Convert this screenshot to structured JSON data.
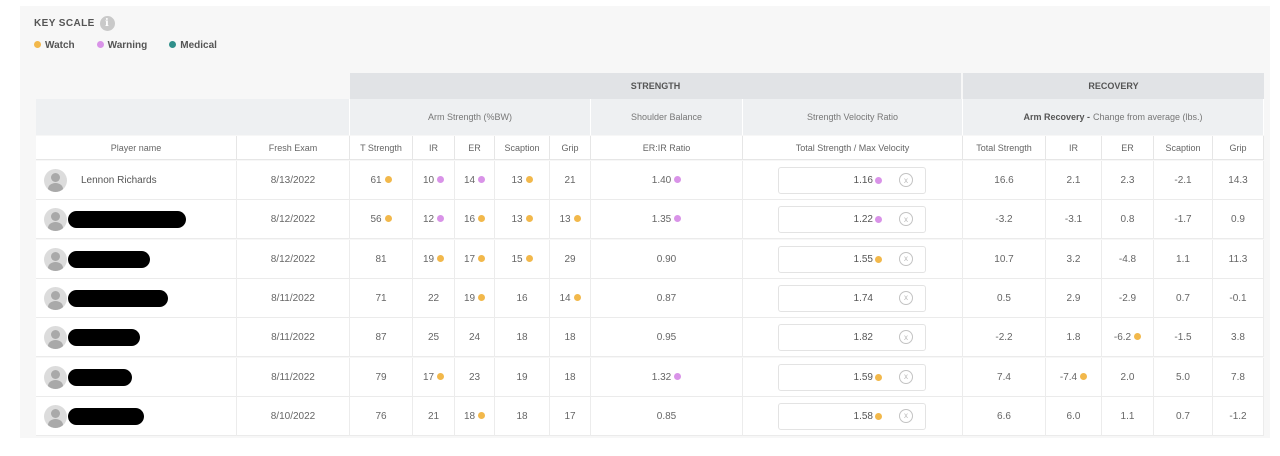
{
  "key_scale": {
    "title": "KEY SCALE",
    "info_icon": "i",
    "legend": [
      {
        "label": "Watch",
        "color": "#f2b84b"
      },
      {
        "label": "Warning",
        "color": "#d993e8"
      },
      {
        "label": "Medical",
        "color": "#2f8f8a"
      }
    ]
  },
  "groups": {
    "strength": "STRENGTH",
    "recovery": "RECOVERY"
  },
  "subgroups": {
    "arm_strength": "Arm Strength (%BW)",
    "shoulder_balance": "Shoulder Balance",
    "svr": "Strength Velocity Ratio",
    "arm_recovery_bold": "Arm Recovery -",
    "arm_recovery_rest": "Change from average (lbs.)"
  },
  "columns": [
    "Player name",
    "Fresh Exam",
    "T Strength",
    "IR",
    "ER",
    "Scaption",
    "Grip",
    "ER:IR Ratio",
    "Total Strength / Max Velocity",
    "Total Strength",
    "IR",
    "ER",
    "Scaption",
    "Grip"
  ],
  "clear_icon": "x",
  "rows": [
    {
      "name": "Lennon Richards",
      "redacted": false,
      "date": "8/13/2022",
      "t": "61",
      "t_flag": "watch",
      "ir": "10",
      "ir_flag": "warning",
      "er": "14",
      "er_flag": "warning",
      "sc": "13",
      "sc_flag": "watch",
      "grip": "21",
      "grip_flag": "",
      "ratio": "1.40",
      "ratio_flag": "warning",
      "svr": "1.16",
      "svr_flag": "warning",
      "r_total": "16.6",
      "r_total_flag": "",
      "r_ir": "2.1",
      "r_ir_flag": "",
      "r_er": "2.3",
      "r_er_flag": "",
      "r_sc": "-2.1",
      "r_grip": "14.3"
    },
    {
      "name": "",
      "redacted": true,
      "redact_width": 118,
      "date": "8/12/2022",
      "t": "56",
      "t_flag": "watch",
      "ir": "12",
      "ir_flag": "warning",
      "er": "16",
      "er_flag": "watch",
      "sc": "13",
      "sc_flag": "watch",
      "grip": "13",
      "grip_flag": "watch",
      "ratio": "1.35",
      "ratio_flag": "warning",
      "svr": "1.22",
      "svr_flag": "warning",
      "r_total": "-3.2",
      "r_total_flag": "",
      "r_ir": "-3.1",
      "r_ir_flag": "",
      "r_er": "0.8",
      "r_er_flag": "",
      "r_sc": "-1.7",
      "r_grip": "0.9"
    },
    {
      "name": "",
      "redacted": true,
      "redact_width": 82,
      "date": "8/12/2022",
      "t": "81",
      "t_flag": "",
      "ir": "19",
      "ir_flag": "watch",
      "er": "17",
      "er_flag": "watch",
      "sc": "15",
      "sc_flag": "watch",
      "grip": "29",
      "grip_flag": "",
      "ratio": "0.90",
      "ratio_flag": "",
      "svr": "1.55",
      "svr_flag": "watch",
      "r_total": "10.7",
      "r_total_flag": "",
      "r_ir": "3.2",
      "r_ir_flag": "",
      "r_er": "-4.8",
      "r_er_flag": "",
      "r_sc": "1.1",
      "r_grip": "11.3"
    },
    {
      "name": "",
      "redacted": true,
      "redact_width": 100,
      "date": "8/11/2022",
      "t": "71",
      "t_flag": "",
      "ir": "22",
      "ir_flag": "",
      "er": "19",
      "er_flag": "watch",
      "sc": "16",
      "sc_flag": "",
      "grip": "14",
      "grip_flag": "watch",
      "ratio": "0.87",
      "ratio_flag": "",
      "svr": "1.74",
      "svr_flag": "",
      "r_total": "0.5",
      "r_total_flag": "",
      "r_ir": "2.9",
      "r_ir_flag": "",
      "r_er": "-2.9",
      "r_er_flag": "",
      "r_sc": "0.7",
      "r_grip": "-0.1"
    },
    {
      "name": "",
      "redacted": true,
      "redact_width": 72,
      "date": "8/11/2022",
      "t": "87",
      "t_flag": "",
      "ir": "25",
      "ir_flag": "",
      "er": "24",
      "er_flag": "",
      "sc": "18",
      "sc_flag": "",
      "grip": "18",
      "grip_flag": "",
      "ratio": "0.95",
      "ratio_flag": "",
      "svr": "1.82",
      "svr_flag": "",
      "r_total": "-2.2",
      "r_total_flag": "",
      "r_ir": "1.8",
      "r_ir_flag": "",
      "r_er": "-6.2",
      "r_er_flag": "watch",
      "r_sc": "-1.5",
      "r_grip": "3.8"
    },
    {
      "name": "",
      "redacted": true,
      "redact_width": 64,
      "date": "8/11/2022",
      "t": "79",
      "t_flag": "",
      "ir": "17",
      "ir_flag": "watch",
      "er": "23",
      "er_flag": "",
      "sc": "19",
      "sc_flag": "",
      "grip": "18",
      "grip_flag": "",
      "ratio": "1.32",
      "ratio_flag": "warning",
      "svr": "1.59",
      "svr_flag": "watch",
      "r_total": "7.4",
      "r_total_flag": "",
      "r_ir": "-7.4",
      "r_ir_flag": "watch",
      "r_er": "2.0",
      "r_er_flag": "",
      "r_sc": "5.0",
      "r_grip": "7.8"
    },
    {
      "name": "",
      "redacted": true,
      "redact_width": 76,
      "date": "8/10/2022",
      "t": "76",
      "t_flag": "",
      "ir": "21",
      "ir_flag": "",
      "er": "18",
      "er_flag": "watch",
      "sc": "18",
      "sc_flag": "",
      "grip": "17",
      "grip_flag": "",
      "ratio": "0.85",
      "ratio_flag": "",
      "svr": "1.58",
      "svr_flag": "watch",
      "r_total": "6.6",
      "r_total_flag": "",
      "r_ir": "6.0",
      "r_ir_flag": "",
      "r_er": "1.1",
      "r_er_flag": "",
      "r_sc": "0.7",
      "r_grip": "-1.2"
    }
  ]
}
